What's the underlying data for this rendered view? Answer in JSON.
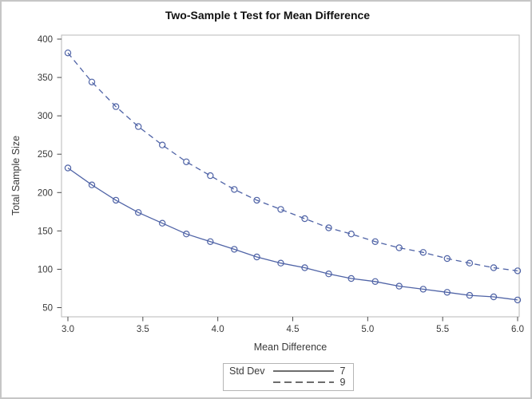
{
  "chart_data": {
    "type": "line",
    "title": "Two-Sample t Test for Mean Difference",
    "xlabel": "Mean Difference",
    "ylabel": "Total Sample Size",
    "xlim": [
      3.0,
      6.0
    ],
    "ylim": [
      50,
      400
    ],
    "grid": false,
    "x_ticks": [
      {
        "label": "3.0",
        "value": 3.0
      },
      {
        "label": "3.5",
        "value": 3.5
      },
      {
        "label": "4.0",
        "value": 4.0
      },
      {
        "label": "4.5",
        "value": 4.5
      },
      {
        "label": "5.0",
        "value": 5.0
      },
      {
        "label": "5.5",
        "value": 5.5
      },
      {
        "label": "6.0",
        "value": 6.0
      }
    ],
    "y_ticks": [
      {
        "label": "50",
        "value": 50
      },
      {
        "label": "100",
        "value": 100
      },
      {
        "label": "150",
        "value": 150
      },
      {
        "label": "200",
        "value": 200
      },
      {
        "label": "250",
        "value": 250
      },
      {
        "label": "300",
        "value": 300
      },
      {
        "label": "350",
        "value": 350
      },
      {
        "label": "400",
        "value": 400
      }
    ],
    "x": [
      3.0,
      3.16,
      3.32,
      3.47,
      3.63,
      3.79,
      3.95,
      4.11,
      4.26,
      4.42,
      4.58,
      4.74,
      4.89,
      5.05,
      5.21,
      5.37,
      5.53,
      5.68,
      5.84,
      6.0
    ],
    "series": [
      {
        "name": "7",
        "pattern": "solid",
        "marker": "open-circle",
        "values": [
          232,
          210,
          190,
          174,
          160,
          146,
          136,
          126,
          116,
          108,
          102,
          94,
          88,
          84,
          78,
          74,
          70,
          66,
          64,
          60
        ]
      },
      {
        "name": "9",
        "pattern": "dashed",
        "marker": "open-circle",
        "values": [
          382,
          344,
          312,
          286,
          262,
          240,
          222,
          204,
          190,
          178,
          166,
          154,
          146,
          136,
          128,
          122,
          114,
          108,
          102,
          98
        ]
      }
    ],
    "legend": {
      "title": "Std Dev",
      "position": "bottom-center",
      "entries": [
        {
          "label": "7",
          "pattern": "solid"
        },
        {
          "label": "9",
          "pattern": "dashed"
        }
      ]
    },
    "colors": {
      "series_line": "#4f63a6",
      "legend_line": "#3d3d3d",
      "frame": "#b9b9b9",
      "tick": "#4a4a4a",
      "tick_text": "#3a3a3a",
      "title_text": "#111111"
    }
  }
}
